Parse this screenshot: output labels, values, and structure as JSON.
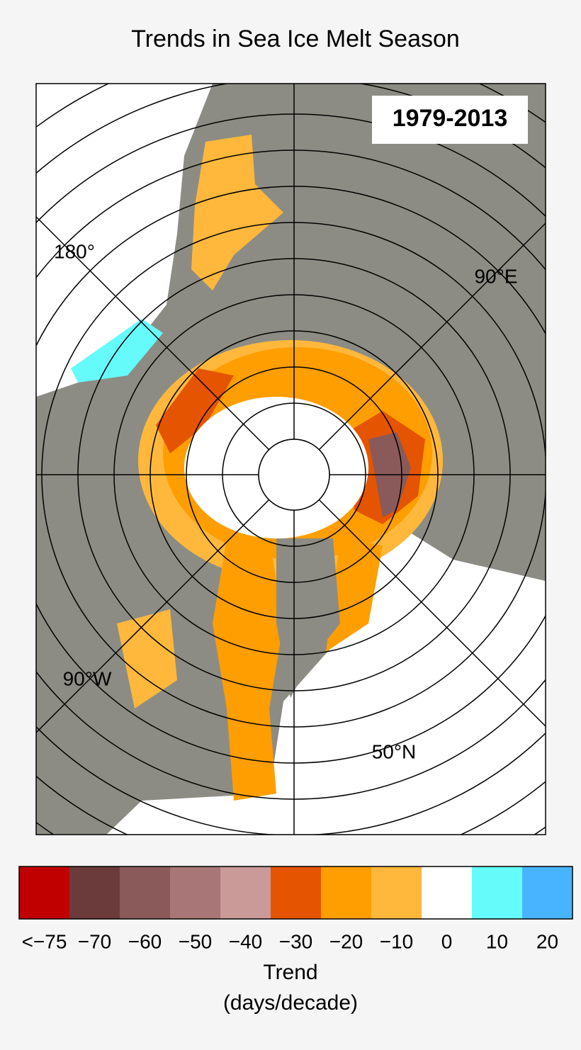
{
  "header": {
    "title": "Trends in Sea Ice Melt Season"
  },
  "map": {
    "period": "1979-2013",
    "labels": {
      "meridian_180": "180°",
      "meridian_90e": "90°E",
      "meridian_90w": "90°W",
      "parallel_50n": "50°N"
    }
  },
  "legend": {
    "title": "Trend",
    "unit": "(days/decade)",
    "items": [
      {
        "label": "<−75",
        "color": "#c00000"
      },
      {
        "label": "−70",
        "color": "#6b3a3a"
      },
      {
        "label": "−60",
        "color": "#8a5a5a"
      },
      {
        "label": "−50",
        "color": "#a87676"
      },
      {
        "label": "−40",
        "color": "#c99a98"
      },
      {
        "label": "−30",
        "color": "#e55400"
      },
      {
        "label": "−20",
        "color": "#ff9e00"
      },
      {
        "label": "−10",
        "color": "#ffb83c"
      },
      {
        "label": "0",
        "color": "#ffffff"
      },
      {
        "label": "10",
        "color": "#66fbfb"
      },
      {
        "label": "20",
        "color": "#48b4ff"
      }
    ]
  }
}
